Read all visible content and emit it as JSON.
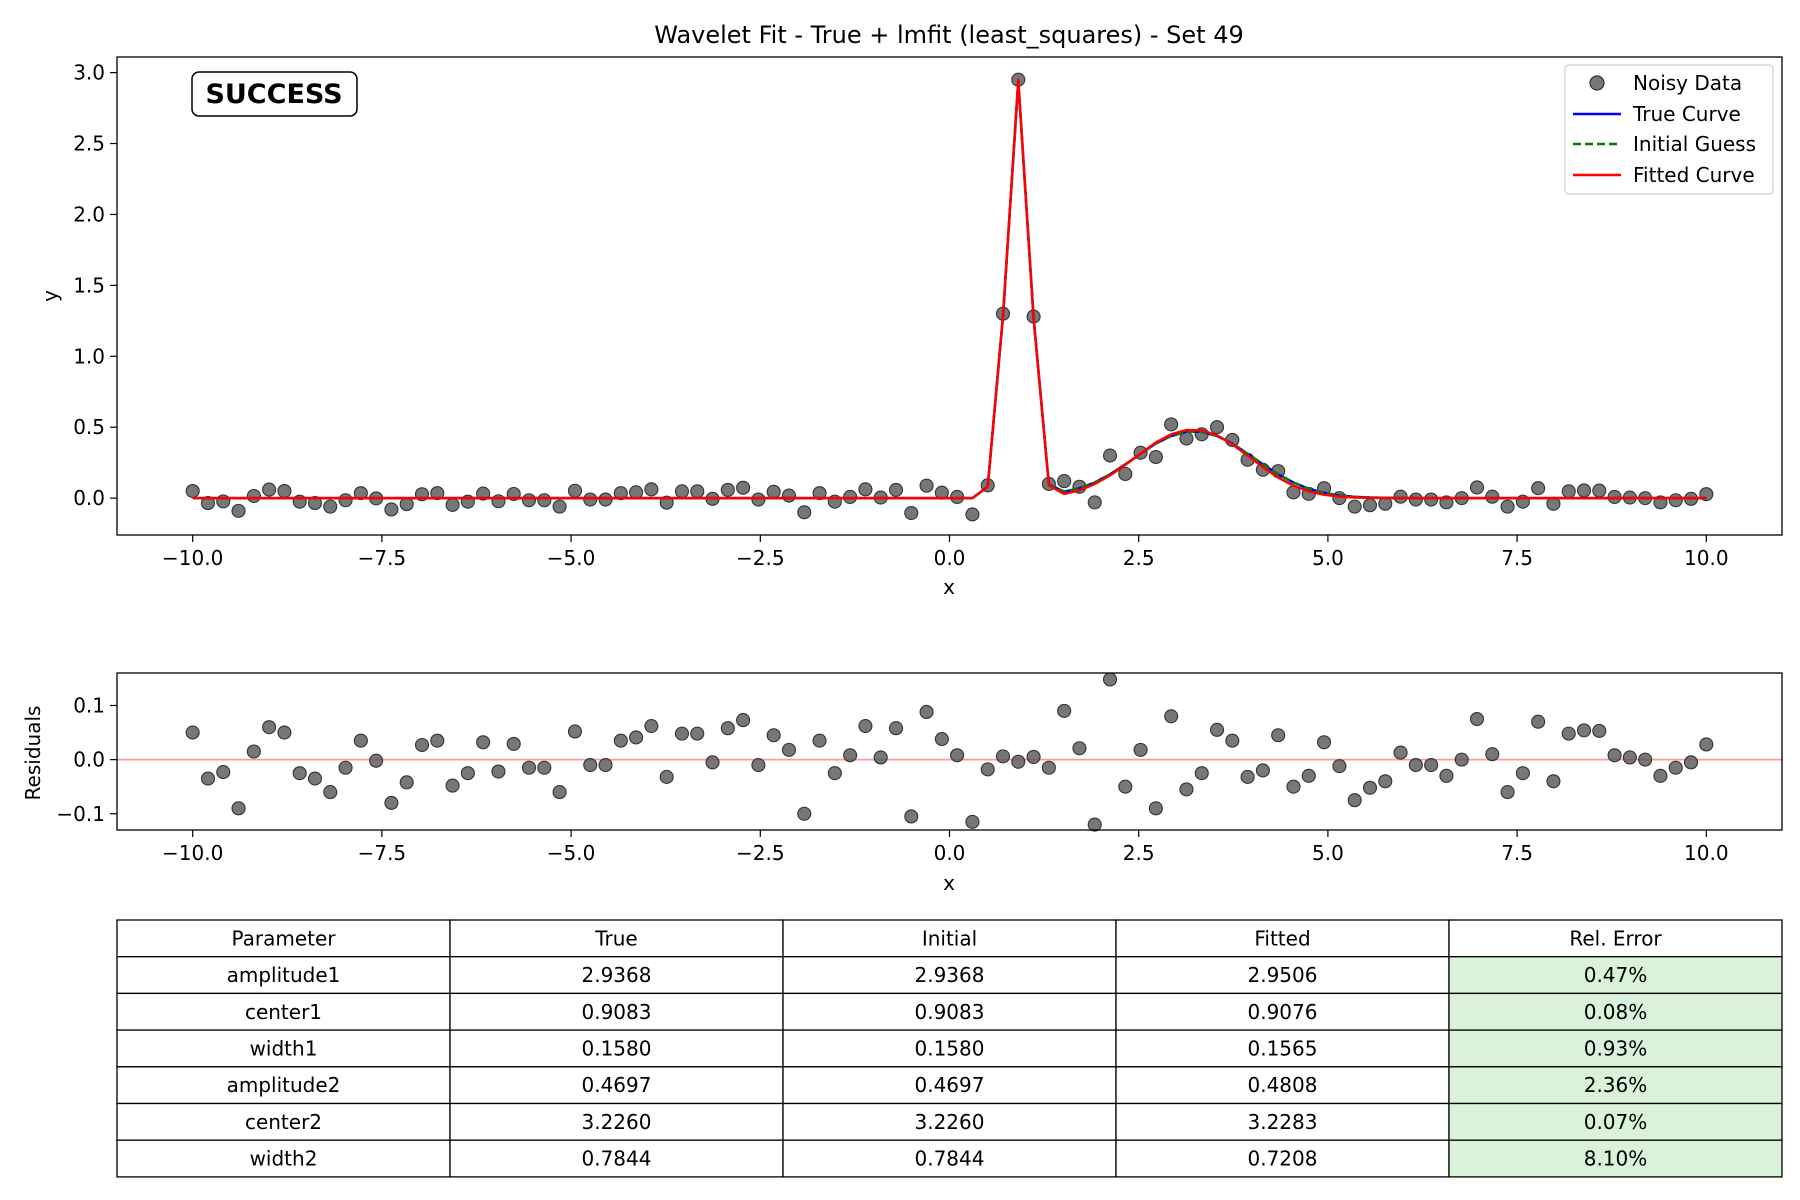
{
  "chart_data": [
    {
      "type": "scatter",
      "title": "Wavelet Fit - True + lmfit (least_squares) - Set 49",
      "xlabel": "x",
      "ylabel": "y",
      "xlim": [
        -11.0,
        11.0
      ],
      "ylim": [
        -0.26,
        3.11
      ],
      "x_ticks": [
        -10.0,
        -7.5,
        -5.0,
        -2.5,
        0.0,
        2.5,
        5.0,
        7.5,
        10.0
      ],
      "x_tick_labels": [
        "−10.0",
        "−7.5",
        "−5.0",
        "−2.5",
        "0.0",
        "2.5",
        "5.0",
        "7.5",
        "10.0"
      ],
      "y_ticks": [
        0.0,
        0.5,
        1.0,
        1.5,
        2.0,
        2.5,
        3.0
      ],
      "y_tick_labels": [
        "0.0",
        "0.5",
        "1.0",
        "1.5",
        "2.0",
        "2.5",
        "3.0"
      ],
      "grid": false,
      "legend_position": "top-right",
      "badge": {
        "text": "SUCCESS",
        "color": "#008000"
      },
      "x": [
        -10.0,
        -9.798,
        -9.596,
        -9.394,
        -9.192,
        -8.99,
        -8.788,
        -8.586,
        -8.384,
        -8.182,
        -7.98,
        -7.778,
        -7.576,
        -7.374,
        -7.172,
        -6.97,
        -6.768,
        -6.566,
        -6.364,
        -6.162,
        -5.96,
        -5.758,
        -5.556,
        -5.354,
        -5.152,
        -4.949,
        -4.747,
        -4.545,
        -4.343,
        -4.141,
        -3.939,
        -3.737,
        -3.535,
        -3.333,
        -3.131,
        -2.929,
        -2.727,
        -2.525,
        -2.323,
        -2.121,
        -1.919,
        -1.717,
        -1.515,
        -1.313,
        -1.111,
        -0.909,
        -0.707,
        -0.505,
        -0.303,
        -0.101,
        0.101,
        0.303,
        0.505,
        0.707,
        0.909,
        1.111,
        1.313,
        1.515,
        1.717,
        1.919,
        2.121,
        2.323,
        2.525,
        2.727,
        2.929,
        3.131,
        3.333,
        3.535,
        3.737,
        3.939,
        4.141,
        4.343,
        4.545,
        4.747,
        4.949,
        5.152,
        5.354,
        5.556,
        5.758,
        5.96,
        6.162,
        6.364,
        6.566,
        6.768,
        6.97,
        7.172,
        7.374,
        7.576,
        7.778,
        7.98,
        8.182,
        8.384,
        8.586,
        8.788,
        8.99,
        9.192,
        9.394,
        9.596,
        9.798,
        10.0
      ],
      "series": [
        {
          "name": "Noisy Data",
          "color": "#555555",
          "kind": "points",
          "values": [
            0.05,
            -0.035,
            -0.023,
            -0.09,
            0.015,
            0.06,
            0.05,
            -0.025,
            -0.035,
            -0.06,
            -0.015,
            0.035,
            -0.002,
            -0.08,
            -0.042,
            0.027,
            0.035,
            -0.048,
            -0.025,
            0.032,
            -0.022,
            0.029,
            -0.015,
            -0.015,
            -0.06,
            0.052,
            -0.01,
            -0.01,
            0.035,
            0.041,
            0.062,
            -0.032,
            0.048,
            0.048,
            -0.005,
            0.058,
            0.073,
            -0.01,
            0.045,
            0.018,
            -0.1,
            0.035,
            -0.025,
            0.008,
            0.062,
            0.004,
            0.058,
            -0.105,
            0.088,
            0.038,
            0.008,
            -0.115,
            0.09,
            1.3,
            2.95,
            1.28,
            0.1,
            0.12,
            0.08,
            -0.03,
            0.3,
            0.17,
            0.32,
            0.29,
            0.52,
            0.42,
            0.45,
            0.5,
            0.41,
            0.27,
            0.2,
            0.19,
            0.04,
            0.03,
            0.07,
            0.0,
            -0.06,
            -0.05,
            -0.04,
            0.01,
            -0.01,
            -0.01,
            -0.03,
            0.0,
            0.075,
            0.01,
            -0.06,
            -0.025,
            0.07,
            -0.04,
            0.048,
            0.054,
            0.053,
            0.008,
            0.004,
            0.0,
            -0.03,
            -0.015,
            -0.005,
            0.028
          ]
        },
        {
          "name": "True Curve",
          "color": "#0000ff",
          "kind": "line",
          "values": [
            0.0,
            0.0,
            0.0,
            0.0,
            0.0,
            0.0,
            0.0,
            0.0,
            0.0,
            0.0,
            0.0,
            0.0,
            0.0,
            0.0,
            0.0,
            0.0,
            0.0,
            0.0,
            0.0,
            0.0,
            0.0,
            0.0,
            0.0,
            0.0,
            0.0,
            0.0,
            0.0,
            0.0,
            0.0,
            0.0,
            0.0,
            0.0,
            0.0,
            0.0,
            0.0,
            0.0,
            0.0,
            0.0,
            0.0,
            0.0,
            0.0,
            0.0,
            0.0,
            0.0,
            0.0,
            0.0,
            0.0,
            0.0,
            0.0,
            0.0,
            0.0,
            0.0,
            0.081,
            1.282,
            2.937,
            1.272,
            0.096,
            0.046,
            0.069,
            0.11,
            0.168,
            0.238,
            0.313,
            0.385,
            0.438,
            0.468,
            0.468,
            0.438,
            0.385,
            0.313,
            0.238,
            0.168,
            0.11,
            0.066,
            0.037,
            0.019,
            0.009,
            0.004,
            0.002,
            0.001,
            0.0,
            0.0,
            0.0,
            0.0,
            0.0,
            0.0,
            0.0,
            0.0,
            0.0,
            0.0,
            0.0,
            0.0,
            0.0,
            0.0,
            0.0,
            0.0,
            0.0,
            0.0,
            0.0,
            0.0
          ]
        },
        {
          "name": "Initial Guess",
          "color": "#008000",
          "kind": "line",
          "dashed": true,
          "values": [
            0.0,
            0.0,
            0.0,
            0.0,
            0.0,
            0.0,
            0.0,
            0.0,
            0.0,
            0.0,
            0.0,
            0.0,
            0.0,
            0.0,
            0.0,
            0.0,
            0.0,
            0.0,
            0.0,
            0.0,
            0.0,
            0.0,
            0.0,
            0.0,
            0.0,
            0.0,
            0.0,
            0.0,
            0.0,
            0.0,
            0.0,
            0.0,
            0.0,
            0.0,
            0.0,
            0.0,
            0.0,
            0.0,
            0.0,
            0.0,
            0.0,
            0.0,
            0.0,
            0.0,
            0.0,
            0.0,
            0.0,
            0.0,
            0.0,
            0.0,
            0.0,
            0.0,
            0.081,
            1.282,
            2.937,
            1.272,
            0.096,
            0.046,
            0.069,
            0.11,
            0.168,
            0.238,
            0.313,
            0.385,
            0.438,
            0.468,
            0.468,
            0.438,
            0.385,
            0.313,
            0.238,
            0.168,
            0.11,
            0.066,
            0.037,
            0.019,
            0.009,
            0.004,
            0.002,
            0.001,
            0.0,
            0.0,
            0.0,
            0.0,
            0.0,
            0.0,
            0.0,
            0.0,
            0.0,
            0.0,
            0.0,
            0.0,
            0.0,
            0.0,
            0.0,
            0.0,
            0.0,
            0.0,
            0.0,
            0.0
          ]
        },
        {
          "name": "Fitted Curve",
          "color": "#ff0000",
          "kind": "line",
          "values": [
            0.0,
            0.0,
            0.0,
            0.0,
            0.0,
            0.0,
            0.0,
            0.0,
            0.0,
            0.0,
            0.0,
            0.0,
            0.0,
            0.0,
            0.0,
            0.0,
            0.0,
            0.0,
            0.0,
            0.0,
            0.0,
            0.0,
            0.0,
            0.0,
            0.0,
            0.0,
            0.0,
            0.0,
            0.0,
            0.0,
            0.0,
            0.0,
            0.0,
            0.0,
            0.0,
            0.0,
            0.0,
            0.0,
            0.0,
            0.0,
            0.0,
            0.0,
            0.0,
            0.0,
            0.0,
            0.0,
            0.0,
            0.0,
            0.0,
            0.0,
            0.0,
            0.0,
            0.08,
            1.29,
            2.95,
            1.27,
            0.09,
            0.03,
            0.055,
            0.1,
            0.16,
            0.235,
            0.315,
            0.392,
            0.45,
            0.48,
            0.478,
            0.443,
            0.38,
            0.3,
            0.22,
            0.145,
            0.088,
            0.048,
            0.024,
            0.011,
            0.004,
            0.002,
            0.001,
            0.0,
            0.0,
            0.0,
            0.0,
            0.0,
            0.0,
            0.0,
            0.0,
            0.0,
            0.0,
            0.0,
            0.0,
            0.0,
            0.0,
            0.0,
            0.0,
            0.0,
            0.0,
            0.0,
            0.0,
            0.0
          ]
        }
      ]
    },
    {
      "type": "scatter",
      "title": "",
      "xlabel": "x",
      "ylabel": "Residuals",
      "xlim": [
        -11.0,
        11.0
      ],
      "ylim": [
        -0.13,
        0.16
      ],
      "x_ticks": [
        -10.0,
        -7.5,
        -5.0,
        -2.5,
        0.0,
        2.5,
        5.0,
        7.5,
        10.0
      ],
      "x_tick_labels": [
        "−10.0",
        "−7.5",
        "−5.0",
        "−2.5",
        "0.0",
        "2.5",
        "5.0",
        "7.5",
        "10.0"
      ],
      "y_ticks": [
        -0.1,
        0.0,
        0.1
      ],
      "y_tick_labels": [
        "−0.1",
        "0.0",
        "0.1"
      ],
      "grid": false,
      "zero_line_color": "#ff9999",
      "series": [
        {
          "name": "",
          "color": "#555555",
          "kind": "points",
          "values": [
            0.05,
            -0.035,
            -0.023,
            -0.09,
            0.015,
            0.06,
            0.05,
            -0.025,
            -0.035,
            -0.06,
            -0.015,
            0.035,
            -0.002,
            -0.08,
            -0.042,
            0.027,
            0.035,
            -0.048,
            -0.025,
            0.032,
            -0.022,
            0.029,
            -0.015,
            -0.015,
            -0.06,
            0.052,
            -0.01,
            -0.01,
            0.035,
            0.041,
            0.062,
            -0.032,
            0.048,
            0.048,
            -0.005,
            0.058,
            0.073,
            -0.01,
            0.045,
            0.018,
            -0.1,
            0.035,
            -0.025,
            0.008,
            0.062,
            0.004,
            0.058,
            -0.105,
            0.088,
            0.038,
            0.008,
            -0.115,
            -0.018,
            0.006,
            -0.004,
            0.005,
            -0.015,
            0.09,
            0.021,
            -0.12,
            0.148,
            -0.05,
            0.018,
            -0.09,
            0.08,
            -0.055,
            -0.025,
            0.055,
            0.035,
            -0.032,
            -0.02,
            0.045,
            -0.05,
            -0.03,
            0.032,
            -0.012,
            -0.075,
            -0.052,
            -0.04,
            0.013,
            -0.01,
            -0.01,
            -0.03,
            0.0,
            0.075,
            0.01,
            -0.06,
            -0.025,
            0.07,
            -0.04,
            0.048,
            0.054,
            0.053,
            0.008,
            0.004,
            0.0,
            -0.03,
            -0.015,
            -0.005,
            0.028
          ]
        }
      ]
    },
    {
      "type": "table",
      "columns": [
        "Parameter",
        "True",
        "Initial",
        "Fitted",
        "Rel. Error"
      ],
      "rows": [
        [
          "amplitude1",
          "2.9368",
          "2.9368",
          "2.9506",
          "0.47%"
        ],
        [
          "center1",
          "0.9083",
          "0.9083",
          "0.9076",
          "0.08%"
        ],
        [
          "width1",
          "0.1580",
          "0.1580",
          "0.1565",
          "0.93%"
        ],
        [
          "amplitude2",
          "0.4697",
          "0.4697",
          "0.4808",
          "2.36%"
        ],
        [
          "center2",
          "3.2260",
          "3.2260",
          "3.2283",
          "0.07%"
        ],
        [
          "width2",
          "0.7844",
          "0.7844",
          "0.7208",
          "8.10%"
        ]
      ],
      "highlight_column": 4,
      "highlight_color": "#d9f2d9"
    }
  ]
}
